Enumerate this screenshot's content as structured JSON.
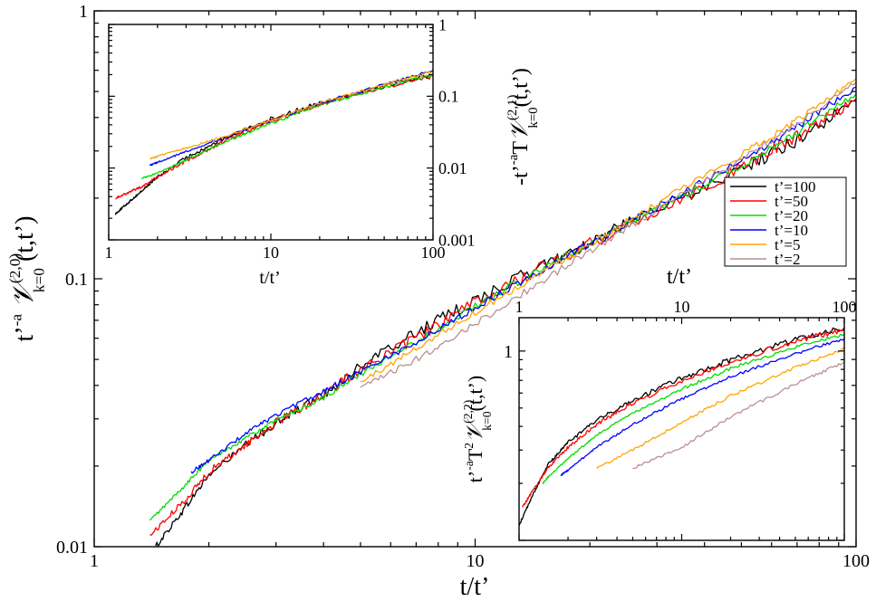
{
  "chart_data": [
    {
      "name": "main",
      "type": "line",
      "xscale": "log",
      "yscale": "log",
      "xlim": [
        1,
        100
      ],
      "ylim": [
        0.01,
        1
      ],
      "xticks": [
        1,
        10,
        100
      ],
      "xtick_labels": [
        "1",
        "10",
        "100"
      ],
      "yticks": [
        0.01,
        0.1,
        1
      ],
      "ytick_labels": [
        "0.01",
        "0.1",
        "1"
      ],
      "xlabel": "t/t’",
      "ylabel": {
        "prefix": "t’",
        "exp": "-a",
        "mid": " ",
        "symbol": "𝒱",
        "sub": "k=0",
        "sup": "(2,0)",
        "suffix": " (t,t’)"
      },
      "series": [
        {
          "name": "t’=100",
          "color": "#000000",
          "x": [
            1.45,
            1.7,
            2.0,
            2.5,
            3.0,
            4.0,
            5.0,
            7.0,
            10.0,
            15.0,
            20.0,
            30.0,
            50.0,
            70.0,
            100.0
          ],
          "y": [
            0.01,
            0.0135,
            0.0185,
            0.024,
            0.029,
            0.037,
            0.047,
            0.063,
            0.083,
            0.112,
            0.137,
            0.18,
            0.255,
            0.33,
            0.46
          ]
        },
        {
          "name": "t’=50",
          "color": "#ff0000",
          "x": [
            1.4,
            1.7,
            2.0,
            2.5,
            3.0,
            4.0,
            5.0,
            7.0,
            10.0,
            15.0,
            20.0,
            30.0,
            50.0,
            70.0,
            100.0
          ],
          "y": [
            0.011,
            0.0145,
            0.019,
            0.024,
            0.029,
            0.037,
            0.046,
            0.06,
            0.081,
            0.11,
            0.135,
            0.18,
            0.26,
            0.34,
            0.47
          ]
        },
        {
          "name": "t’=20",
          "color": "#00dd00",
          "x": [
            1.4,
            1.7,
            2.0,
            2.5,
            3.0,
            4.0,
            5.0,
            7.0,
            10.0,
            15.0,
            20.0,
            30.0,
            50.0,
            70.0,
            100.0
          ],
          "y": [
            0.0125,
            0.0165,
            0.021,
            0.0255,
            0.0295,
            0.036,
            0.044,
            0.058,
            0.079,
            0.109,
            0.135,
            0.182,
            0.265,
            0.35,
            0.49
          ]
        },
        {
          "name": "t’=10",
          "color": "#0000ff",
          "x": [
            1.8,
            2.0,
            2.5,
            3.0,
            4.0,
            5.0,
            7.0,
            10.0,
            15.0,
            20.0,
            30.0,
            50.0,
            70.0,
            100.0
          ],
          "y": [
            0.019,
            0.021,
            0.0265,
            0.031,
            0.038,
            0.045,
            0.058,
            0.078,
            0.108,
            0.135,
            0.185,
            0.275,
            0.37,
            0.52
          ]
        },
        {
          "name": "t’=5",
          "color": "#ffa500",
          "x": [
            5.0,
            7.0,
            10.0,
            15.0,
            20.0,
            30.0,
            50.0,
            70.0,
            100.0
          ],
          "y": [
            0.041,
            0.055,
            0.075,
            0.106,
            0.135,
            0.19,
            0.29,
            0.39,
            0.56
          ]
        },
        {
          "name": "t’=2",
          "color": "#bc8f8f",
          "x": [
            5.0,
            7.0,
            10.0,
            15.0,
            20.0,
            30.0,
            50.0,
            70.0,
            100.0
          ],
          "y": [
            0.039,
            0.05,
            0.068,
            0.098,
            0.127,
            0.182,
            0.28,
            0.38,
            0.54
          ]
        }
      ],
      "legend": {
        "position": "right",
        "entries": [
          "t’=100",
          "t’=50",
          "t’=20",
          "t’=10",
          "t’=5",
          "t’=2"
        ]
      }
    },
    {
      "name": "inset_top_left",
      "type": "line",
      "xscale": "log",
      "yscale": "log",
      "xlim": [
        1,
        100
      ],
      "ylim": [
        0.001,
        1
      ],
      "xticks": [
        1,
        10,
        100
      ],
      "xtick_labels": [
        "1",
        "10",
        "100"
      ],
      "yticks": [
        0.001,
        0.01,
        0.1,
        1
      ],
      "ytick_labels": [
        "0.001",
        "0.01",
        "0.1",
        "1"
      ],
      "xlabel": "t/t’",
      "ylabel": {
        "prefix": "-t’",
        "exp": "-a",
        "mid": "T",
        "symbol": "𝒱",
        "sub": "k=0",
        "sup": "(2,1)",
        "suffix": "(t,t’)"
      },
      "series": [
        {
          "name": "t’=100",
          "color": "#000000",
          "x": [
            1.1,
            1.3,
            1.6,
            2.0,
            3.0,
            5.0,
            10.0,
            20.0,
            50.0,
            100.0
          ],
          "y": [
            0.0023,
            0.0032,
            0.0048,
            0.0075,
            0.014,
            0.025,
            0.048,
            0.08,
            0.14,
            0.2
          ]
        },
        {
          "name": "t’=50",
          "color": "#ff0000",
          "x": [
            1.1,
            1.3,
            1.6,
            2.0,
            3.0,
            5.0,
            10.0,
            20.0,
            50.0,
            100.0
          ],
          "y": [
            0.0038,
            0.0045,
            0.0055,
            0.0075,
            0.0125,
            0.023,
            0.045,
            0.078,
            0.135,
            0.19
          ]
        },
        {
          "name": "t’=20",
          "color": "#00dd00",
          "x": [
            1.6,
            2.0,
            3.0,
            5.0,
            10.0,
            20.0,
            50.0,
            100.0
          ],
          "y": [
            0.0072,
            0.0085,
            0.013,
            0.022,
            0.042,
            0.075,
            0.135,
            0.2
          ]
        },
        {
          "name": "t’=10",
          "color": "#0000ff",
          "x": [
            1.8,
            2.0,
            3.0,
            5.0,
            10.0,
            20.0,
            50.0,
            100.0
          ],
          "y": [
            0.011,
            0.012,
            0.017,
            0.026,
            0.046,
            0.08,
            0.145,
            0.23
          ]
        },
        {
          "name": "t’=5",
          "color": "#ffa500",
          "x": [
            1.8,
            2.0,
            3.0,
            5.0,
            10.0,
            20.0,
            50.0,
            100.0
          ],
          "y": [
            0.0135,
            0.0145,
            0.019,
            0.027,
            0.046,
            0.08,
            0.145,
            0.22
          ]
        }
      ]
    },
    {
      "name": "inset_bottom_right",
      "type": "line",
      "xscale": "log",
      "yscale": "log",
      "xlim": [
        1,
        100
      ],
      "ylim": [
        0.1,
        1.5
      ],
      "xticks": [
        1,
        10,
        100
      ],
      "xtick_labels": [
        "1",
        "10",
        "100"
      ],
      "xtick_position": "top",
      "yticks": [
        1
      ],
      "ytick_labels": [
        "1"
      ],
      "xlabel": "t/t’",
      "ylabel": {
        "prefix": "t’",
        "exp": "-a",
        "mid": "T",
        "mid_exp": "2",
        "symbol": "𝒱",
        "sub": "k=0",
        "sup": "(2,2)",
        "suffix": "(t,t’)"
      },
      "series": [
        {
          "name": "t’=100",
          "color": "#000000",
          "x": [
            1.0,
            1.2,
            1.5,
            2.0,
            3.0,
            5.0,
            10.0,
            20.0,
            50.0,
            100.0
          ],
          "y": [
            0.12,
            0.17,
            0.25,
            0.33,
            0.43,
            0.55,
            0.72,
            0.9,
            1.15,
            1.33
          ]
        },
        {
          "name": "t’=50",
          "color": "#ff0000",
          "x": [
            1.05,
            1.2,
            1.5,
            2.0,
            3.0,
            5.0,
            10.0,
            20.0,
            50.0,
            100.0
          ],
          "y": [
            0.15,
            0.18,
            0.24,
            0.31,
            0.41,
            0.53,
            0.7,
            0.88,
            1.13,
            1.3
          ]
        },
        {
          "name": "t’=20",
          "color": "#00dd00",
          "x": [
            1.4,
            1.5,
            2.0,
            3.0,
            5.0,
            10.0,
            20.0,
            50.0,
            100.0
          ],
          "y": [
            0.2,
            0.215,
            0.27,
            0.36,
            0.47,
            0.63,
            0.81,
            1.05,
            1.23
          ]
        },
        {
          "name": "t’=10",
          "color": "#0000ff",
          "x": [
            1.8,
            2.0,
            3.0,
            5.0,
            10.0,
            20.0,
            50.0,
            100.0
          ],
          "y": [
            0.22,
            0.235,
            0.31,
            0.41,
            0.56,
            0.73,
            0.97,
            1.16
          ]
        },
        {
          "name": "t’=5",
          "color": "#ffa500",
          "x": [
            3.0,
            5.0,
            10.0,
            20.0,
            50.0,
            100.0
          ],
          "y": [
            0.24,
            0.3,
            0.42,
            0.58,
            0.82,
            1.03
          ]
        },
        {
          "name": "t’=2",
          "color": "#bc8f8f",
          "x": [
            5.0,
            10.0,
            20.0,
            50.0,
            100.0
          ],
          "y": [
            0.24,
            0.31,
            0.45,
            0.67,
            0.87
          ]
        }
      ]
    }
  ]
}
